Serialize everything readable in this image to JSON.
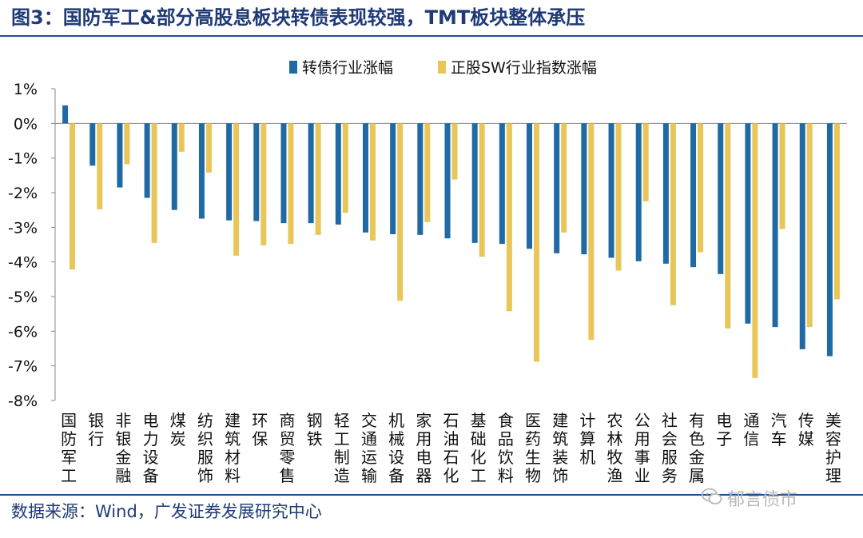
{
  "header": {
    "title": "图3：国防军工&部分高股息板块转债表现较强，TMT板块整体承压"
  },
  "footer": {
    "source": "数据来源：Wind，广发证券发展研究中心",
    "watermark": "郁言债市",
    "watermark_icon": "wechat-icon"
  },
  "colors": {
    "series1": "#1f6aa5",
    "series2": "#e8c65a",
    "title": "#1f3a75",
    "rule": "#1f4e8c"
  },
  "chart_data": {
    "type": "bar",
    "ylim": [
      -8,
      1
    ],
    "yticks": [
      "1%",
      "0%",
      "-1%",
      "-2%",
      "-3%",
      "-4%",
      "-5%",
      "-6%",
      "-7%",
      "-8%"
    ],
    "ytick_values": [
      1,
      0,
      -1,
      -2,
      -3,
      -4,
      -5,
      -6,
      -7,
      -8
    ],
    "grid": false,
    "legend_position": "top-center",
    "categories": [
      "国防军工",
      "银行",
      "非银金融",
      "电力设备",
      "煤炭",
      "纺织服饰",
      "建筑材料",
      "环保",
      "商贸零售",
      "钢铁",
      "轻工制造",
      "交通运输",
      "机械设备",
      "家用电器",
      "石油石化",
      "基础化工",
      "食品饮料",
      "医药生物",
      "建筑装饰",
      "计算机",
      "农林牧渔",
      "公用事业",
      "社会服务",
      "有色金属",
      "电子",
      "通信",
      "汽车",
      "传媒",
      "美容护理"
    ],
    "series": [
      {
        "name": "转债行业涨幅",
        "values": [
          0.52,
          -1.22,
          -1.85,
          -2.15,
          -2.5,
          -2.75,
          -2.8,
          -2.82,
          -2.88,
          -2.88,
          -2.92,
          -3.15,
          -3.2,
          -3.22,
          -3.32,
          -3.45,
          -3.48,
          -3.62,
          -3.75,
          -3.78,
          -3.88,
          -3.98,
          -4.05,
          -4.15,
          -4.35,
          -5.78,
          -5.88,
          -6.52,
          -6.72
        ]
      },
      {
        "name": "正股SW行业指数涨幅",
        "values": [
          -4.22,
          -2.48,
          -1.18,
          -3.45,
          -0.82,
          -1.42,
          -3.82,
          -3.52,
          -3.48,
          -3.22,
          -2.58,
          -3.38,
          -5.12,
          -2.85,
          -1.62,
          -3.85,
          -5.42,
          -6.88,
          -3.15,
          -6.25,
          -4.25,
          -2.25,
          -5.25,
          -3.72,
          -5.92,
          -7.35,
          -3.05,
          -5.88,
          -5.08
        ]
      }
    ]
  }
}
